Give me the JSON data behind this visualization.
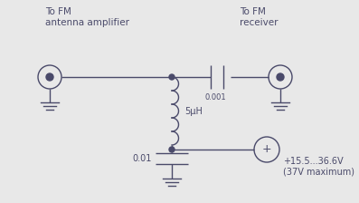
{
  "bg_color": "#e8e8e8",
  "line_color": "#4a4a6a",
  "text_color": "#4a4a6a",
  "title_left": "To FM\nantenna amplifier",
  "title_right": "To FM\nreceiver",
  "label_cap_top": "0.001",
  "label_inductor": "5μH",
  "label_cap_bot": "0.01",
  "label_voltage": "+15.5...36.6V\n(37V maximum)",
  "fig_width": 3.97,
  "fig_height": 2.24,
  "dpi": 100
}
